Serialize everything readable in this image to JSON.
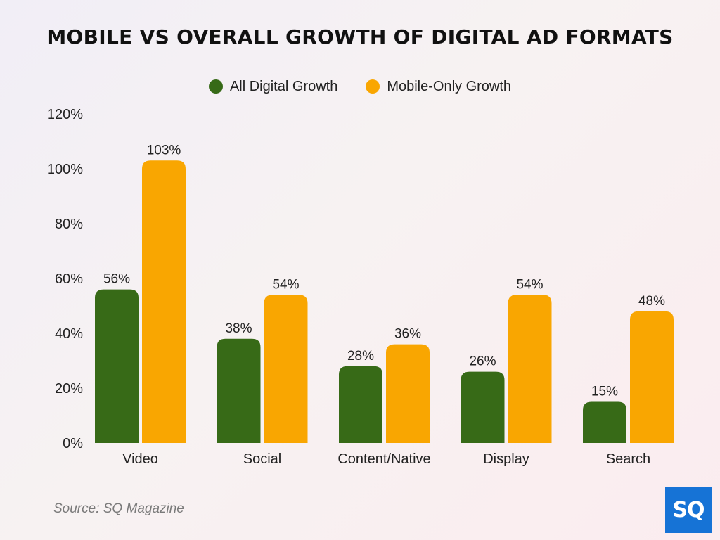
{
  "chart_data": {
    "type": "bar",
    "title": "MOBILE VS OVERALL GROWTH OF DIGITAL AD FORMATS",
    "categories": [
      "Video",
      "Social",
      "Content/Native",
      "Display",
      "Search"
    ],
    "series": [
      {
        "name": "All Digital Growth",
        "color": "#376a17",
        "values": [
          56,
          38,
          28,
          26,
          15
        ],
        "labels": [
          "56%",
          "38%",
          "28%",
          "26%",
          "15%"
        ]
      },
      {
        "name": "Mobile-Only Growth",
        "color": "#f9a601",
        "values": [
          103,
          54,
          36,
          54,
          48
        ],
        "labels": [
          "103%",
          "54%",
          "36%",
          "54%",
          "48%"
        ]
      }
    ],
    "ylim": [
      0,
      120
    ],
    "yticks": [
      "0%",
      "20%",
      "40%",
      "60%",
      "80%",
      "100%",
      "120%"
    ],
    "ytick_values": [
      0,
      20,
      40,
      60,
      80,
      100,
      120
    ],
    "xlabel": "",
    "ylabel": "",
    "grid": false,
    "legend": "top-center"
  },
  "source": "Source: SQ Magazine",
  "logo_text": "SQ"
}
